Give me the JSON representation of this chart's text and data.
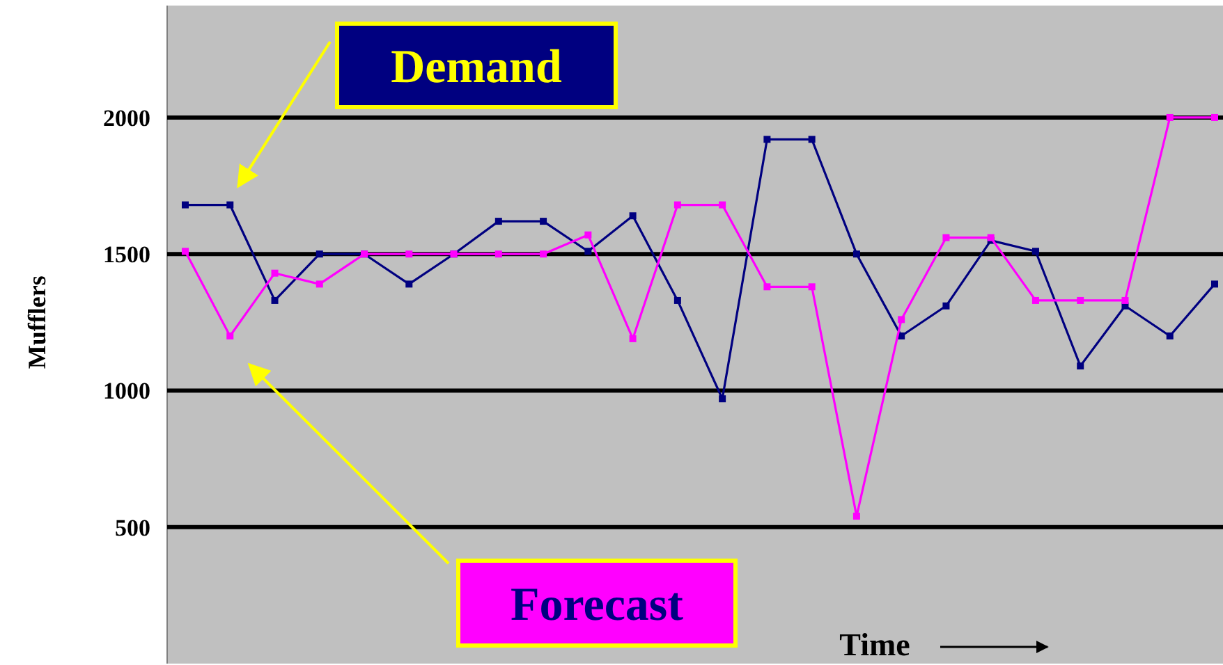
{
  "chart_data": {
    "type": "line",
    "xlabel": "Time",
    "ylabel": "Mufflers",
    "categories": [
      null,
      null,
      null,
      null,
      null,
      null,
      null,
      null,
      null,
      null,
      null,
      null,
      null,
      null,
      null,
      null,
      null,
      null,
      null,
      null,
      null,
      null,
      null,
      null
    ],
    "series": [
      {
        "name": "Demand",
        "color": "#000080",
        "values": [
          1680,
          1680,
          1330,
          1500,
          1500,
          1390,
          1500,
          1620,
          1620,
          1510,
          1640,
          1330,
          970,
          1920,
          1920,
          1500,
          1200,
          1310,
          1550,
          1510,
          1090,
          1310,
          1200,
          1390
        ]
      },
      {
        "name": "Forecast",
        "color": "#ff00ff",
        "values": [
          1510,
          1200,
          1430,
          1390,
          1500,
          1500,
          1500,
          1500,
          1500,
          1570,
          1190,
          1680,
          1680,
          1380,
          1380,
          540,
          1260,
          1560,
          1560,
          1330,
          1330,
          1330,
          2000,
          2000
        ]
      }
    ],
    "ylim": [
      0,
      2410
    ],
    "yticks": [
      500,
      1000,
      1500,
      2000
    ],
    "grid": "y",
    "marker": "square",
    "line_style": "solid"
  }
}
